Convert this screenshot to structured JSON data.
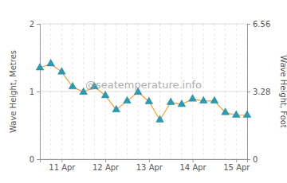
{
  "chart_data": {
    "type": "line",
    "y_label": "Wave Height, Metres",
    "y2_label": "Wave Height, Foot",
    "annotations": [
      "@seatemperature.info"
    ],
    "categories": [
      null,
      null,
      "11 Apr",
      null,
      null,
      null,
      "12 Apr",
      null,
      null,
      null,
      "13 Apr",
      null,
      null,
      null,
      "14 Apr",
      null,
      null,
      null,
      "15 Apr",
      null
    ],
    "series": [
      {
        "name": "Wave Height",
        "color": "#f0a030",
        "marker": "triangle",
        "values": [
          1.35,
          1.41,
          1.29,
          1.07,
          0.99,
          1.07,
          0.94,
          0.73,
          0.86,
          0.99,
          0.85,
          0.58,
          0.84,
          0.81,
          0.89,
          0.86,
          0.86,
          0.69,
          0.65,
          0.65
        ]
      }
    ],
    "ylim": [
      0,
      2
    ],
    "yticks": [
      0,
      1,
      2
    ],
    "y2lim": [
      0,
      6.56
    ],
    "y2ticks": [
      0,
      3.28,
      6.56
    ],
    "grid": true
  }
}
